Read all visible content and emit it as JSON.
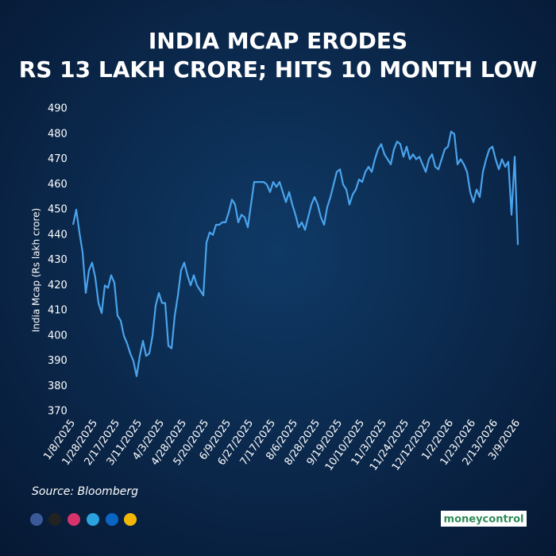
{
  "chart_data": {
    "type": "line",
    "title": [
      "INDIA MCAP ERODES",
      "RS 13 LAKH CRORE; HITS 10 MONTH LOW"
    ],
    "y_label": "India Mcap (Rs lakh crore)",
    "categories": [
      "1/8/2025",
      null,
      null,
      null,
      null,
      null,
      null,
      "1/28/2025",
      null,
      null,
      null,
      null,
      null,
      null,
      "2/17/2025",
      null,
      null,
      null,
      null,
      null,
      null,
      "3/11/2025",
      null,
      null,
      null,
      null,
      null,
      null,
      "4/3/2025",
      null,
      null,
      null,
      null,
      null,
      null,
      "4/28/2025",
      null,
      null,
      null,
      null,
      null,
      null,
      "5/20/2025",
      null,
      null,
      null,
      null,
      null,
      null,
      "6/9/2025",
      null,
      null,
      null,
      null,
      null,
      null,
      "6/27/2025",
      null,
      null,
      null,
      null,
      null,
      null,
      "7/17/2025",
      null,
      null,
      null,
      null,
      null,
      null,
      "8/6/2025",
      null,
      null,
      null,
      null,
      null,
      null,
      "8/28/2025",
      null,
      null,
      null,
      null,
      null,
      null,
      "9/19/2025",
      null,
      null,
      null,
      null,
      null,
      null,
      "10/10/2025",
      null,
      null,
      null,
      null,
      null,
      null,
      "11/3/2025",
      null,
      null,
      null,
      null,
      null,
      null,
      "11/24/2025",
      null,
      null,
      null,
      null,
      null,
      null,
      "12/12/2025",
      null,
      null,
      null,
      null,
      null,
      null,
      "1/2/2026",
      null,
      null,
      null,
      null,
      null,
      null,
      "1/23/2026",
      null,
      null,
      null,
      null,
      null,
      null,
      "2/13/2026",
      null,
      null,
      null,
      null,
      null,
      null,
      "3/9/2026"
    ],
    "values": [
      444,
      450,
      441,
      433,
      417,
      426,
      429,
      423,
      413,
      409,
      420,
      419,
      424,
      421,
      408,
      406,
      400,
      397,
      393,
      390,
      384,
      392,
      398,
      392,
      393,
      400,
      412,
      417,
      413,
      413,
      396,
      395,
      408,
      416,
      426,
      429,
      424,
      420,
      424,
      420,
      418,
      416,
      437,
      441,
      440,
      444,
      444,
      445,
      445,
      449,
      454,
      452,
      445,
      448,
      447,
      443,
      452,
      461,
      461,
      461,
      461,
      460,
      457,
      461,
      459,
      461,
      457,
      453,
      457,
      452,
      448,
      443,
      445,
      442,
      447,
      452,
      455,
      452,
      447,
      444,
      451,
      455,
      460,
      465,
      466,
      460,
      458,
      452,
      456,
      458,
      462,
      461,
      465,
      467,
      465,
      470,
      474,
      476,
      472,
      470,
      468,
      474,
      477,
      476,
      471,
      475,
      470,
      472,
      470,
      471,
      468,
      465,
      470,
      472,
      467,
      466,
      470,
      474,
      475,
      481,
      480,
      468,
      470,
      468,
      465,
      457,
      453,
      458,
      455,
      465,
      470,
      474,
      475,
      470,
      466,
      470,
      467,
      469,
      448,
      471,
      436
    ],
    "color": "#4aa3ec",
    "ylim": [
      370,
      490
    ],
    "yticks": [
      370,
      380,
      390,
      400,
      410,
      420,
      430,
      440,
      450,
      460,
      470,
      480,
      490
    ],
    "grid": false
  },
  "footer": {
    "source": "Source: Bloomberg",
    "brand": "moneycontrol"
  }
}
